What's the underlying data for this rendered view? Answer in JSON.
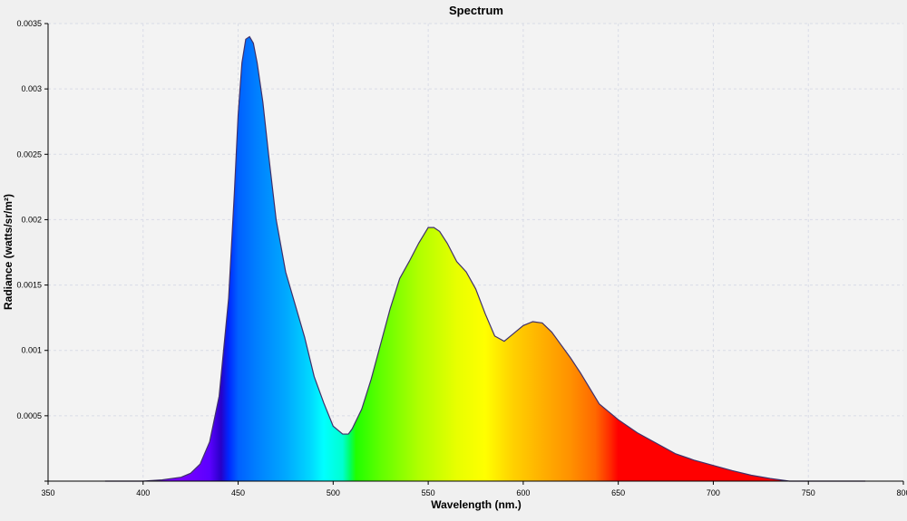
{
  "chart_data": {
    "type": "area",
    "title": "Spectrum",
    "xlabel": "Wavelength (nm.)",
    "ylabel": "Radiance (watts/sr/m²)",
    "xlim": [
      350,
      800
    ],
    "ylim": [
      0,
      0.0035
    ],
    "x_ticks": [
      350,
      400,
      450,
      500,
      550,
      600,
      650,
      700,
      750,
      800
    ],
    "y_ticks": [
      0.0005,
      0.001,
      0.0015,
      0.002,
      0.0025,
      0.003,
      0.0035
    ],
    "x_tick_labels": [
      "350",
      "400",
      "450",
      "500",
      "550",
      "600",
      "650",
      "700",
      "750",
      "800"
    ],
    "y_tick_labels": [
      "0.0005",
      "0.001",
      "0.0015",
      "0.002",
      "0.0025",
      "0.003",
      "0.0035"
    ],
    "grid": true,
    "fill": "visible-spectrum-gradient",
    "line_color": "#40306a",
    "series": [
      {
        "x": [
          380,
          400,
          410,
          420,
          425,
          430,
          435,
          440,
          445,
          448,
          450,
          452,
          454,
          456,
          458,
          460,
          463,
          466,
          470,
          475,
          480,
          485,
          490,
          495,
          500,
          505,
          508,
          510,
          515,
          520,
          525,
          530,
          535,
          540,
          545,
          550,
          553,
          556,
          560,
          565,
          570,
          575,
          580,
          585,
          590,
          595,
          600,
          605,
          610,
          615,
          620,
          625,
          630,
          640,
          650,
          660,
          670,
          680,
          690,
          700,
          710,
          720,
          730,
          740,
          750,
          760,
          770,
          780
        ],
        "y": [
          0,
          0,
          1e-05,
          3e-05,
          6e-05,
          0.00013,
          0.0003,
          0.00065,
          0.0014,
          0.0022,
          0.0028,
          0.0032,
          0.00338,
          0.0034,
          0.00335,
          0.0032,
          0.0029,
          0.0025,
          0.002,
          0.0016,
          0.00135,
          0.0011,
          0.0008,
          0.0006,
          0.00042,
          0.00036,
          0.00036,
          0.0004,
          0.00055,
          0.00078,
          0.00105,
          0.00132,
          0.00155,
          0.00168,
          0.00182,
          0.00194,
          0.00194,
          0.00191,
          0.00182,
          0.00168,
          0.0016,
          0.00147,
          0.00128,
          0.00111,
          0.00107,
          0.00113,
          0.00119,
          0.00122,
          0.00121,
          0.00114,
          0.00104,
          0.00094,
          0.00083,
          0.00059,
          0.00047,
          0.00037,
          0.00029,
          0.00021,
          0.00016,
          0.00012,
          8e-05,
          4.5e-05,
          2e-05,
          0,
          0,
          0,
          0,
          0
        ]
      }
    ]
  }
}
